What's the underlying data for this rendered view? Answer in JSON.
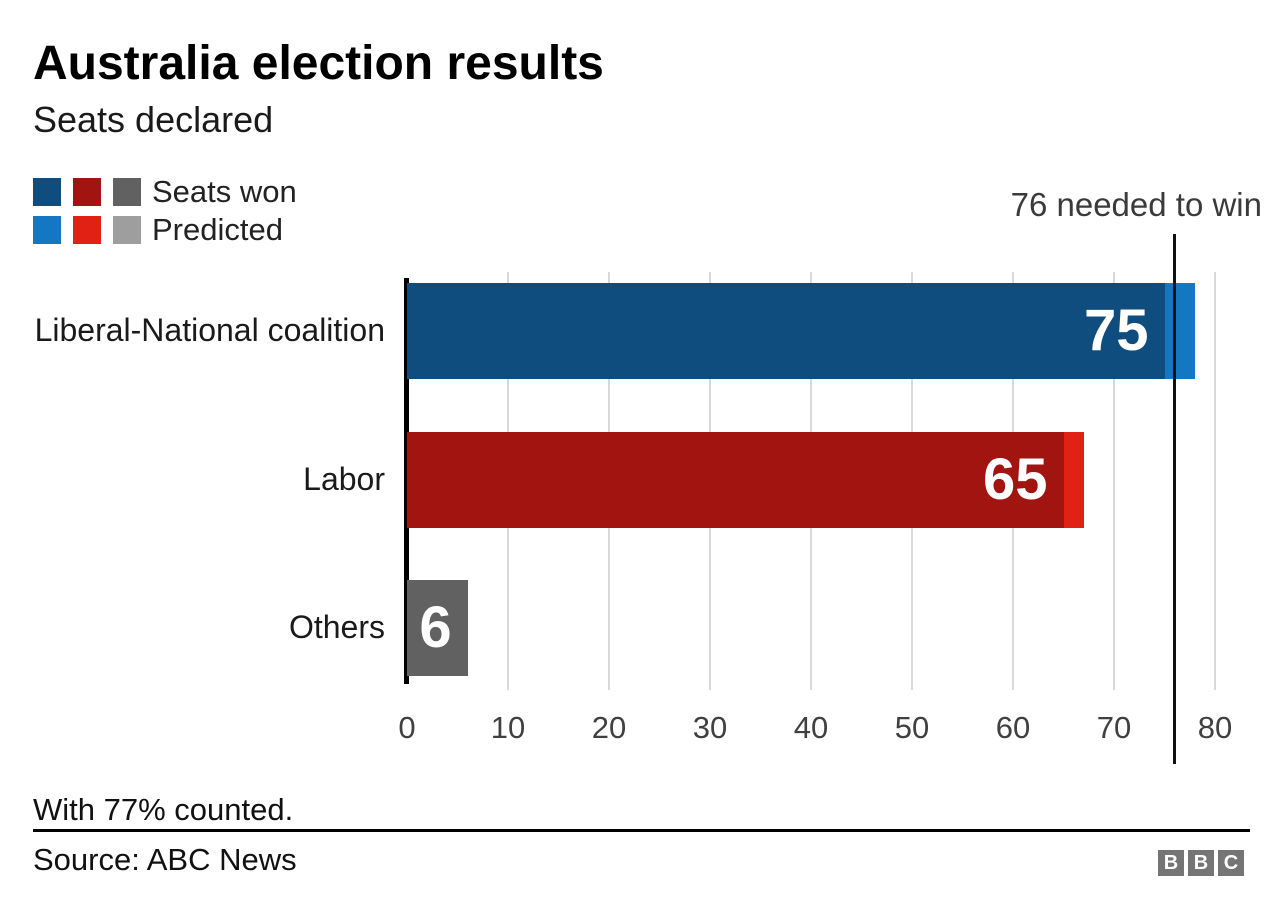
{
  "header": {
    "title": "Australia election results",
    "subtitle": "Seats declared"
  },
  "chart_data": {
    "type": "bar",
    "orientation": "horizontal",
    "title": "Australia election results",
    "subtitle": "Seats declared",
    "categories": [
      "Liberal-National coalition",
      "Labor",
      "Others"
    ],
    "series": [
      {
        "name": "Seats won",
        "values": [
          75,
          65,
          6
        ],
        "colors": [
          "#0f4d7e",
          "#a21410",
          "#616161"
        ]
      },
      {
        "name": "Predicted",
        "values": [
          78,
          67,
          6
        ],
        "colors": [
          "#1377c2",
          "#e02113",
          "#9e9e9e"
        ]
      }
    ],
    "value_labels": [
      "75",
      "65",
      "6"
    ],
    "xlim": [
      0,
      80
    ],
    "xticks": [
      0,
      10,
      20,
      30,
      40,
      50,
      60,
      70,
      80
    ],
    "annotation": {
      "label": "76 needed to win",
      "value": 76
    },
    "grid": true,
    "gridline_color": "#d9d9d9",
    "axis_color": "#000000",
    "legend_position": "top-left"
  },
  "footer": {
    "note": "With 77% counted.",
    "source": "Source: ABC News",
    "logo_letters": [
      "B",
      "B",
      "C"
    ]
  }
}
